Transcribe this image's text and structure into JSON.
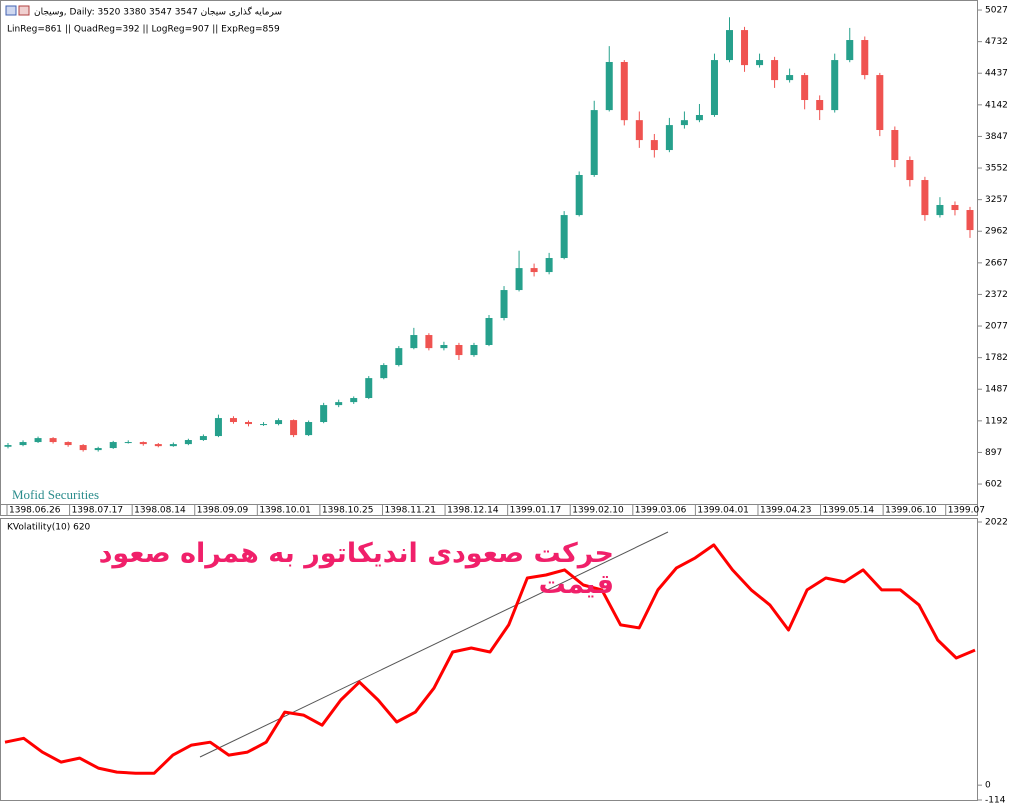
{
  "chart_data": [
    {
      "type": "candlestick",
      "title": "وسیجان, Daily:  3520 3380 3547 3547  سرمایه گذاری سیجان",
      "subtitle": "LinReg=861 || QuadReg=392 || LogReg=907 || ExpReg=859",
      "watermark": "Mofid Securities",
      "up_color": "#26a08c",
      "down_color": "#ef5350",
      "xtick_labels": [
        "1398.06.26",
        "1398.07.17",
        "1398.08.14",
        "1398.09.09",
        "1398.10.01",
        "1398.10.25",
        "1398.11.21",
        "1398.12.14",
        "1399.01.17",
        "1399.02.10",
        "1399.03.06",
        "1399.04.01",
        "1399.04.23",
        "1399.05.14",
        "1399.06.10",
        "1399.07"
      ],
      "ylim": [
        313,
        5102
      ],
      "yticks": [
        602,
        897,
        1192,
        1487,
        1782,
        2077,
        2372,
        2667,
        2962,
        3257,
        3552,
        3847,
        4142,
        4437,
        4732,
        5027
      ],
      "open": [
        950,
        966,
        994,
        1031,
        994,
        966,
        919,
        938,
        994,
        994,
        975,
        956,
        975,
        1013,
        1050,
        1218,
        1181,
        1162,
        1162,
        1199,
        1059,
        1181,
        1339,
        1367,
        1405,
        1591,
        1713,
        1871,
        1993,
        1871,
        1900,
        1806,
        1900,
        2152,
        2413,
        2618,
        2581,
        2712,
        3113,
        3487,
        4093,
        4542,
        3999,
        3813,
        3720,
        3953,
        3999,
        4047,
        4560,
        4840,
        4513,
        4560,
        4373,
        4420,
        4187,
        4093,
        4560,
        4747,
        4420,
        3907,
        3627,
        3440,
        3113,
        3207,
        3160
      ],
      "high": [
        985,
        1010,
        1045,
        1040,
        1000,
        975,
        950,
        1005,
        1010,
        1000,
        985,
        990,
        1025,
        1065,
        1250,
        1235,
        1195,
        1180,
        1215,
        1205,
        1195,
        1360,
        1390,
        1420,
        1610,
        1730,
        1890,
        2060,
        2010,
        1930,
        1920,
        1920,
        2180,
        2450,
        2780,
        2660,
        2760,
        3150,
        3520,
        4180,
        4690,
        4560,
        4080,
        3870,
        4020,
        4080,
        4150,
        4620,
        4960,
        4870,
        4620,
        4590,
        4480,
        4440,
        4230,
        4620,
        4860,
        4780,
        4440,
        3940,
        3660,
        3470,
        3280,
        3240,
        3190
      ],
      "low": [
        935,
        955,
        985,
        980,
        950,
        905,
        905,
        930,
        980,
        960,
        945,
        950,
        965,
        1005,
        1040,
        1165,
        1140,
        1145,
        1150,
        1040,
        1050,
        1170,
        1320,
        1350,
        1395,
        1580,
        1700,
        1860,
        1850,
        1850,
        1760,
        1790,
        1890,
        2130,
        2400,
        2540,
        2560,
        2700,
        3100,
        3470,
        4080,
        3950,
        3740,
        3650,
        3700,
        3920,
        3980,
        4030,
        4540,
        4450,
        4490,
        4300,
        4350,
        4100,
        4000,
        4070,
        4540,
        4380,
        3850,
        3560,
        3380,
        3060,
        3090,
        3110,
        2900
      ],
      "close": [
        966,
        994,
        1031,
        994,
        966,
        919,
        938,
        994,
        994,
        975,
        956,
        975,
        1013,
        1050,
        1218,
        1181,
        1162,
        1162,
        1199,
        1059,
        1181,
        1339,
        1367,
        1405,
        1591,
        1713,
        1871,
        1993,
        1871,
        1900,
        1806,
        1900,
        2152,
        2413,
        2618,
        2581,
        2712,
        3113,
        3487,
        4093,
        4542,
        3999,
        3813,
        3720,
        3953,
        3999,
        4047,
        4560,
        4840,
        4513,
        4560,
        4373,
        4420,
        4187,
        4093,
        4560,
        4747,
        4420,
        3907,
        3627,
        3440,
        3113,
        3207,
        3160,
        2973
      ]
    },
    {
      "type": "line",
      "title": "KVolatility(10) 620",
      "annotation": "حرکت صعودی اندیکاتور به همراه صعود قیمت",
      "color": "#ff0000",
      "ylim": [
        -114,
        2022
      ],
      "yticks": [
        -114,
        0,
        2022
      ],
      "values": [
        330,
        360,
        254,
        177,
        208,
        131,
        100,
        92,
        92,
        231,
        308,
        330,
        231,
        254,
        330,
        561,
        538,
        461,
        654,
        792,
        654,
        485,
        561,
        746,
        1023,
        1054,
        1023,
        1231,
        1592,
        1615,
        1654,
        1538,
        1500,
        1231,
        1208,
        1500,
        1669,
        1746,
        1846,
        1654,
        1500,
        1385,
        1192,
        1500,
        1592,
        1562,
        1654,
        1500,
        1500,
        1385,
        1115,
        977,
        1038
      ]
    }
  ]
}
